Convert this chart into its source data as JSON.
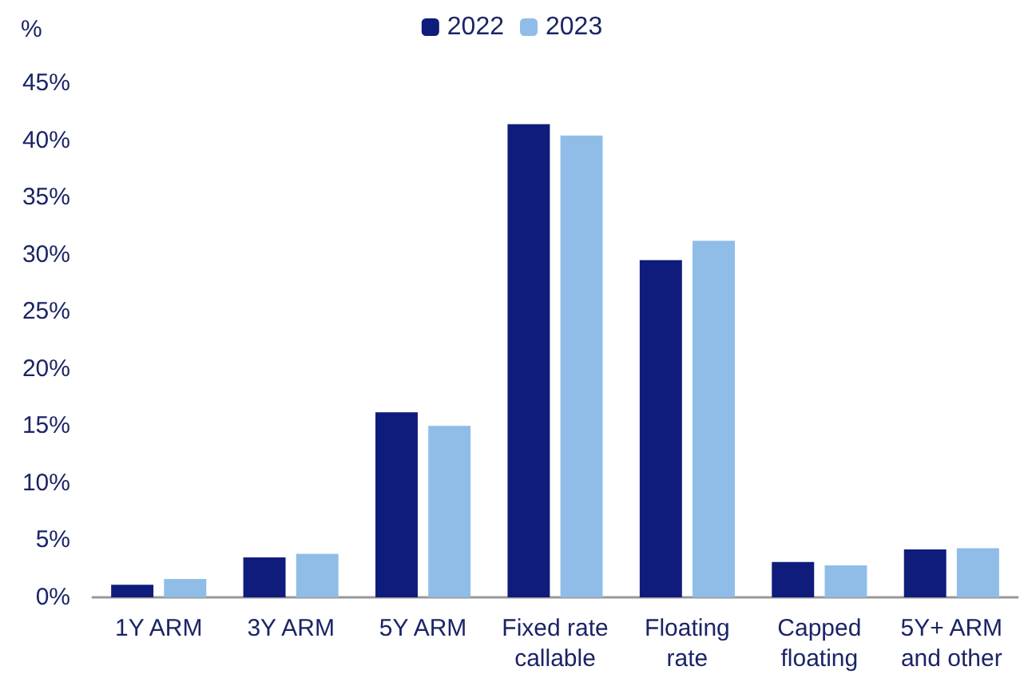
{
  "chart_data": {
    "type": "bar",
    "ylabel": "%",
    "categories": [
      "1Y ARM",
      "3Y ARM",
      "5Y ARM",
      "Fixed rate\ncallable",
      "Floating\nrate",
      "Capped\nfloating",
      "5Y+ ARM\nand other"
    ],
    "series": [
      {
        "name": "2022",
        "color": "#0f1c7c",
        "values": [
          1.1,
          3.5,
          16.2,
          41.4,
          29.5,
          3.1,
          4.2
        ]
      },
      {
        "name": "2023",
        "color": "#8fbde8",
        "values": [
          1.6,
          3.8,
          15.0,
          40.4,
          31.2,
          2.8,
          4.3
        ]
      }
    ],
    "ylim": [
      0,
      45
    ],
    "yticks": [
      {
        "value": 0,
        "label": "0%"
      },
      {
        "value": 5,
        "label": "5%"
      },
      {
        "value": 10,
        "label": "10%"
      },
      {
        "value": 15,
        "label": "15%"
      },
      {
        "value": 20,
        "label": "20%"
      },
      {
        "value": 25,
        "label": "25%"
      },
      {
        "value": 30,
        "label": "30%"
      },
      {
        "value": 35,
        "label": "35%"
      },
      {
        "value": 40,
        "label": "40%"
      },
      {
        "value": 45,
        "label": "45%"
      }
    ],
    "grid": false,
    "legend": "top"
  }
}
